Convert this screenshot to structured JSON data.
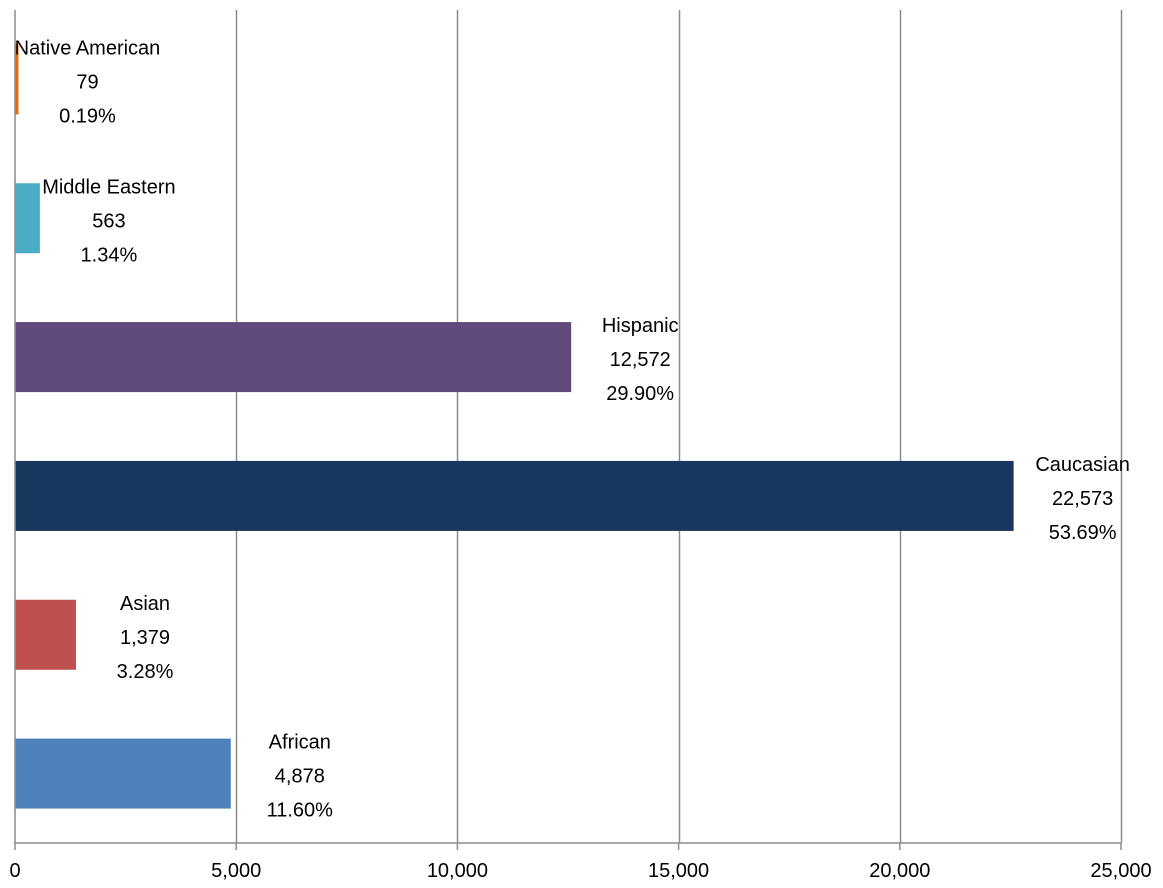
{
  "chart_data": {
    "type": "bar",
    "orientation": "horizontal",
    "title": "",
    "xlabel": "",
    "ylabel": "",
    "xlim": [
      0,
      25000
    ],
    "xticks": [
      0,
      5000,
      10000,
      15000,
      20000,
      25000
    ],
    "xtick_labels": [
      "0",
      "5,000",
      "10,000",
      "15,000",
      "20,000",
      "25,000"
    ],
    "grid": "vertical",
    "legend": "none",
    "categories": [
      "African",
      "Asian",
      "Caucasian",
      "Hispanic",
      "Middle Eastern",
      "Native American"
    ],
    "values": [
      4878,
      1379,
      22573,
      12572,
      563,
      79
    ],
    "value_labels": [
      "4,878",
      "1,379",
      "22,573",
      "12,572",
      "563",
      "79"
    ],
    "percent_labels": [
      "11.60%",
      "3.28%",
      "53.69%",
      "29.90%",
      "1.34%",
      "0.19%"
    ],
    "colors": [
      "#4F81BD",
      "#C0504D",
      "#17375E",
      "#604A7B",
      "#4BACC6",
      "#E46C0A"
    ]
  }
}
